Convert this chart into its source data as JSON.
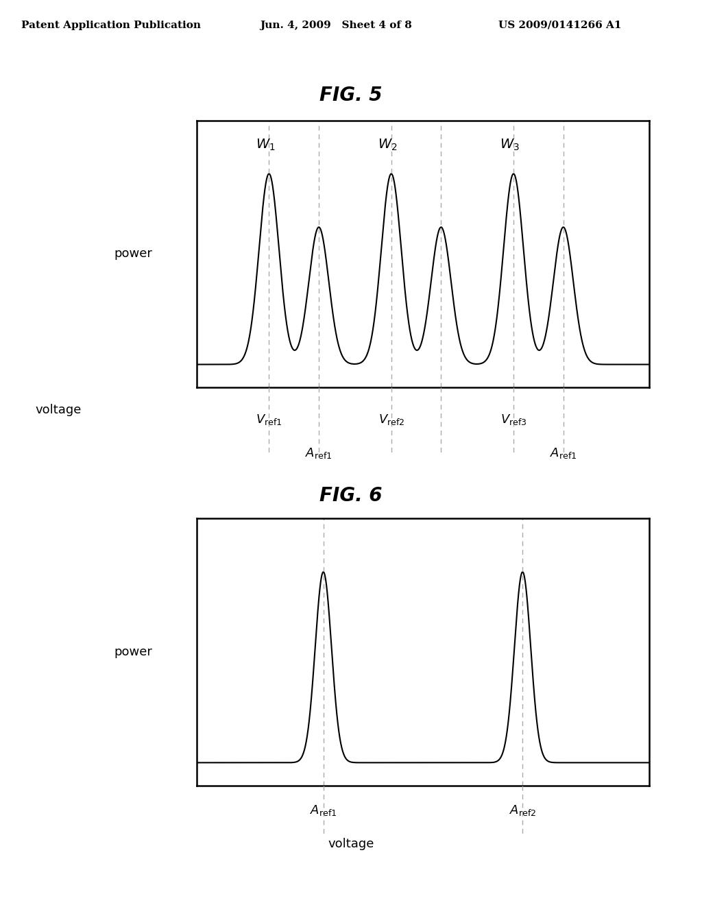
{
  "bg_color": "#ffffff",
  "header_left": "Patent Application Publication",
  "header_mid": "Jun. 4, 2009   Sheet 4 of 8",
  "header_right": "US 2009/0141266 A1",
  "fig5_title": "FIG. 5",
  "fig6_title": "FIG. 6",
  "fig5_ylabel": "power",
  "fig5_xlabel": "voltage",
  "fig6_ylabel": "power",
  "fig6_xlabel": "voltage",
  "line_color": "#000000",
  "dashed_color": "#aaaaaa",
  "fig5_peaks_big": [
    1.6,
    4.3,
    7.0
  ],
  "fig5_peaks_small": [
    2.7,
    5.4,
    8.1
  ],
  "fig5_sigma_big": 0.22,
  "fig5_sigma_small": 0.22,
  "fig5_amp_big": 1.0,
  "fig5_amp_small": 0.72,
  "fig5_baseline": 0.07,
  "fig6_peaks": [
    2.8,
    7.2
  ],
  "fig6_sigma": 0.18,
  "fig6_amp": 1.0,
  "fig6_baseline": 0.07,
  "xlim": [
    0,
    10
  ],
  "font_size_header": 11,
  "font_size_fig_title": 20,
  "font_size_label": 13,
  "font_size_annot": 13
}
